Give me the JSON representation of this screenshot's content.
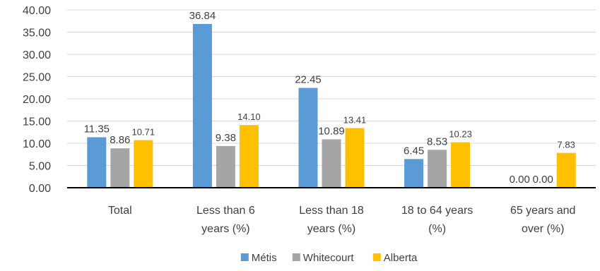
{
  "chart_data": {
    "type": "bar",
    "categories": [
      [
        "Total"
      ],
      [
        "Less than 6",
        "years (%)"
      ],
      [
        "Less than 18",
        "years (%)"
      ],
      [
        "18 to 64 years",
        "(%)"
      ],
      [
        "65 years and",
        "over (%)"
      ]
    ],
    "series": [
      {
        "name": "Métis",
        "color": "#5b9bd5",
        "values": [
          11.35,
          36.84,
          22.45,
          6.45,
          0.0
        ],
        "labels": [
          "11.35",
          "36.84",
          "22.45",
          "6.45",
          "0.00"
        ]
      },
      {
        "name": "Whitecourt",
        "color": "#a5a5a5",
        "values": [
          8.86,
          9.38,
          10.89,
          8.53,
          0.0
        ],
        "labels": [
          "8.86",
          "9.38",
          "10.89",
          "8.53",
          "0.00"
        ]
      },
      {
        "name": "Alberta",
        "color": "#ffc000",
        "values": [
          10.71,
          14.1,
          13.41,
          10.23,
          7.83
        ],
        "labels": [
          "10.71",
          "14.10",
          "13.41",
          "10.23",
          "7.83"
        ]
      }
    ],
    "ylim": [
      0,
      40
    ],
    "yticks": [
      "0.00",
      "5.00",
      "10.00",
      "15.00",
      "20.00",
      "25.00",
      "30.00",
      "35.00",
      "40.00"
    ],
    "grid": true,
    "legend": "bottom"
  }
}
